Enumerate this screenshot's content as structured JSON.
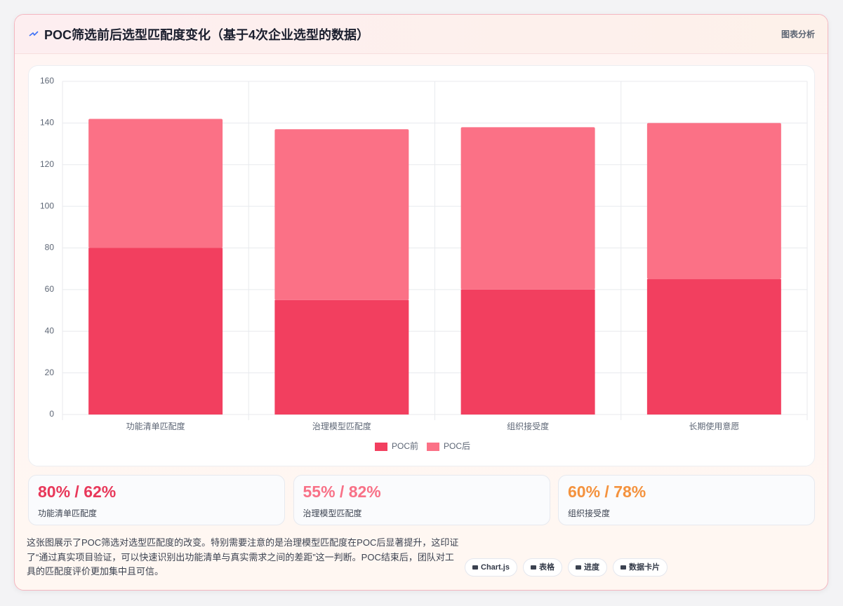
{
  "header": {
    "title": "POC筛选前后选型匹配度变化（基于4次企业选型的数据）",
    "tag": "图表分析"
  },
  "chart_data": {
    "type": "bar",
    "stacked": true,
    "categories": [
      "功能清单匹配度",
      "治理模型匹配度",
      "组织接受度",
      "长期使用意愿"
    ],
    "series": [
      {
        "name": "POC前",
        "color": "#f23f5f",
        "values": [
          80,
          55,
          60,
          65
        ]
      },
      {
        "name": "POC后",
        "color": "#fb7186",
        "values": [
          62,
          82,
          78,
          75
        ]
      }
    ],
    "ylim": [
      0,
      160
    ],
    "yticks": [
      0,
      20,
      40,
      60,
      80,
      100,
      120,
      140,
      160
    ],
    "grid": true,
    "legend": "bottom"
  },
  "stats": [
    {
      "value": "80% / 62%",
      "label": "功能清单匹配度",
      "color": "#e8385a"
    },
    {
      "value": "55% / 82%",
      "label": "治理模型匹配度",
      "color": "#f87187"
    },
    {
      "value": "60% / 78%",
      "label": "组织接受度",
      "color": "#f4923e"
    }
  ],
  "description": "这张图展示了POC筛选对选型匹配度的改变。特别需要注意的是治理模型匹配度在POC后显著提升，这印证了“通过真实项目验证，可以快速识别出功能清单与真实需求之间的差距”这一判断。POC结束后，团队对工具的匹配度评价更加集中且可信。",
  "buttons": [
    "Chart.js",
    "表格",
    "进度",
    "数据卡片"
  ]
}
